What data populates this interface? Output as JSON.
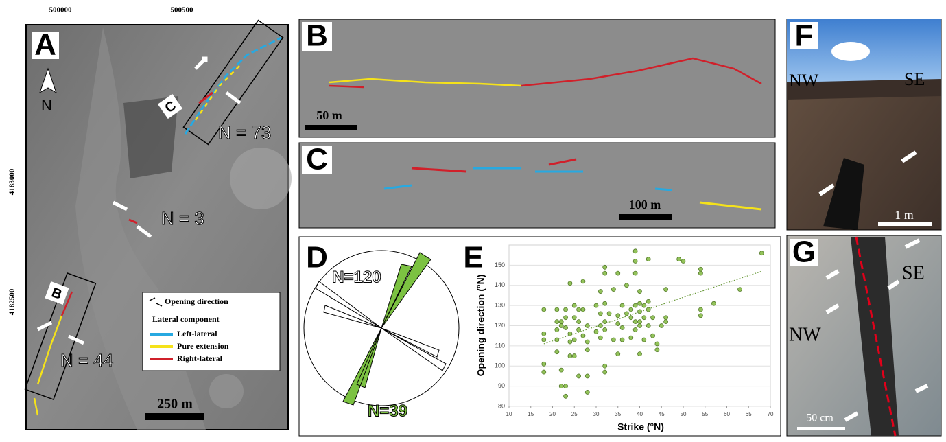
{
  "panels": {
    "a": {
      "label": "A",
      "eastings": [
        "500000",
        "500500"
      ],
      "northings": [
        "4183000",
        "4182500"
      ],
      "north": "N",
      "counts": [
        "N = 73",
        "N = 3",
        "N = 44"
      ],
      "boxes": [
        "B",
        "C"
      ],
      "scale": "250 m",
      "legend": {
        "opening": "Opening direction",
        "lateral": "Lateral component",
        "items": [
          "Left-lateral",
          "Pure extension",
          "Right-lateral"
        ]
      }
    },
    "b": {
      "label": "B",
      "scale": "50 m"
    },
    "c": {
      "label": "C",
      "scale": "100 m"
    },
    "d": {
      "label": "D",
      "counts": [
        "N=120",
        "N=39"
      ]
    },
    "e": {
      "label": "E"
    },
    "f": {
      "label": "F",
      "sides": [
        "NW",
        "SE"
      ],
      "scale": "1 m"
    },
    "g": {
      "label": "G",
      "sides": [
        "NW",
        "SE"
      ],
      "scale": "50 cm"
    }
  },
  "chart_data": {
    "type": "scatter",
    "xlabel": "Strike (°N)",
    "ylabel": "Opening direction (°N)",
    "x": [
      18,
      18,
      18,
      18,
      18,
      21,
      21,
      21,
      21,
      21,
      22,
      22,
      22,
      22,
      23,
      23,
      23,
      23,
      23,
      24,
      24,
      24,
      24,
      25,
      25,
      25,
      25,
      26,
      26,
      26,
      26,
      27,
      27,
      27,
      28,
      28,
      28,
      28,
      28,
      30,
      30,
      31,
      31,
      31,
      31,
      32,
      32,
      32,
      32,
      32,
      32,
      32,
      33,
      34,
      34,
      35,
      35,
      35,
      35,
      36,
      36,
      36,
      37,
      37,
      38,
      38,
      38,
      39,
      39,
      39,
      39,
      39,
      39,
      40,
      40,
      40,
      40,
      40,
      40,
      41,
      41,
      41,
      42,
      42,
      42,
      42,
      43,
      43,
      44,
      44,
      45,
      46,
      46,
      46,
      49,
      50,
      54,
      54,
      54,
      54,
      57,
      63,
      68
    ],
    "values": [
      128,
      116,
      113,
      101,
      97,
      128,
      122,
      118,
      113,
      107,
      122,
      120,
      98,
      90,
      90,
      85,
      128,
      124,
      119,
      141,
      116,
      112,
      105,
      113,
      130,
      124,
      105,
      128,
      122,
      118,
      95,
      142,
      128,
      115,
      120,
      112,
      108,
      95,
      87,
      117,
      130,
      137,
      126,
      120,
      114,
      149,
      146,
      131,
      122,
      118,
      100,
      97,
      126,
      138,
      113,
      125,
      121,
      146,
      106,
      130,
      119,
      113,
      140,
      126,
      128,
      114,
      124,
      157,
      152,
      146,
      130,
      122,
      118,
      137,
      131,
      127,
      122,
      120,
      106,
      130,
      124,
      113,
      153,
      132,
      128,
      120,
      124,
      115,
      108,
      111,
      120,
      124,
      122,
      138,
      153,
      152,
      148,
      146,
      128,
      125,
      131,
      138,
      156
    ],
    "color": "#93c35a",
    "trendline": {
      "x": [
        18,
        68
      ],
      "values": [
        111,
        147
      ]
    },
    "xlim": [
      10,
      70
    ],
    "xticks": [
      10,
      15,
      20,
      25,
      30,
      35,
      40,
      45,
      50,
      55,
      60,
      65,
      70
    ],
    "ylim": [
      80,
      160
    ],
    "yticks": [
      80,
      90,
      100,
      110,
      120,
      130,
      140,
      150
    ],
    "grid": true
  }
}
